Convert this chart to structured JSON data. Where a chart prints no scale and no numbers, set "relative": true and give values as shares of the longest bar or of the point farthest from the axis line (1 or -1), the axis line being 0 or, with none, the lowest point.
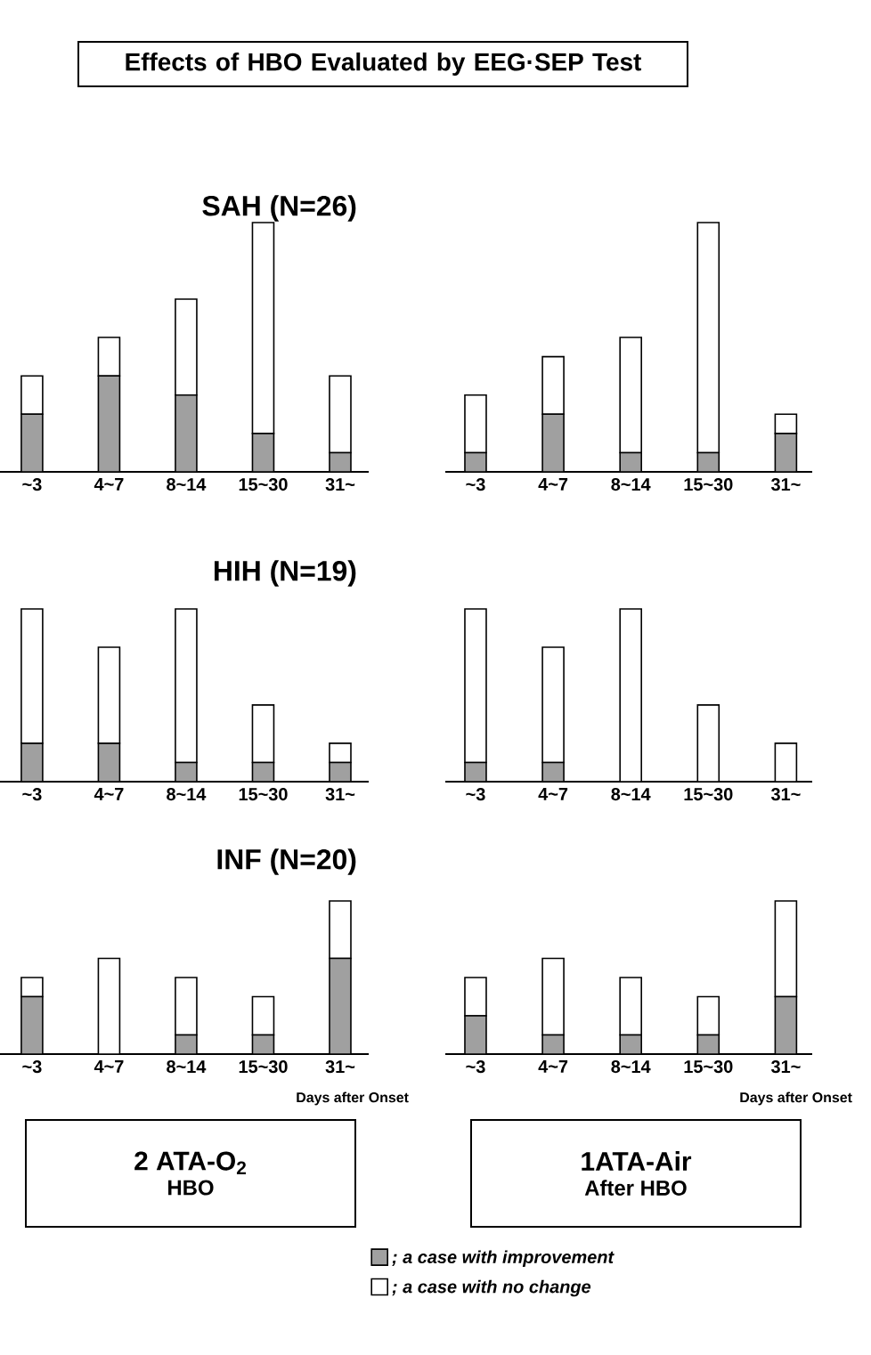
{
  "chart_data": [
    {
      "type": "bar",
      "title": "Effects of HBO Evaluated by EEG·SEP Test",
      "subtitle": "SAH (N=26)",
      "stacked": true,
      "relative": true,
      "categories": [
        "~3",
        "4~7",
        "8~14",
        "15~30",
        "31~"
      ],
      "series": [
        {
          "color": "#a0a0a0",
          "values": [
            0.231,
            0.385,
            0.308,
            0.154,
            0.077
          ]
        },
        {
          "color": "#ffffff",
          "values": [
            0.154,
            0.154,
            0.385,
            0.846,
            0.308
          ]
        }
      ]
    },
    {
      "type": "bar",
      "stacked": true,
      "relative": true,
      "categories": [
        "~3",
        "4~7",
        "8~14",
        "15~30",
        "31~"
      ],
      "series": [
        {
          "color": "#a0a0a0",
          "values": [
            0.077,
            0.231,
            0.077,
            0.077,
            0.154
          ]
        },
        {
          "color": "#ffffff",
          "values": [
            0.231,
            0.231,
            0.462,
            0.923,
            0.077
          ]
        }
      ]
    },
    {
      "type": "bar",
      "subtitle": "HIH (N=19)",
      "stacked": true,
      "relative": true,
      "categories": [
        "~3",
        "4~7",
        "8~14",
        "15~30",
        "31~"
      ],
      "series": [
        {
          "color": "#a0a0a0",
          "values": [
            0.222,
            0.222,
            0.111,
            0.111,
            0.111
          ]
        },
        {
          "color": "#ffffff",
          "values": [
            0.778,
            0.556,
            0.889,
            0.333,
            0.111
          ]
        }
      ]
    },
    {
      "type": "bar",
      "stacked": true,
      "relative": true,
      "categories": [
        "~3",
        "4~7",
        "8~14",
        "15~30",
        "31~"
      ],
      "series": [
        {
          "color": "#a0a0a0",
          "values": [
            0.111,
            0.111,
            0,
            0,
            0
          ]
        },
        {
          "color": "#ffffff",
          "values": [
            0.889,
            0.667,
            1,
            0.444,
            0.222
          ]
        }
      ]
    },
    {
      "type": "bar",
      "subtitle": "INF (N=20)",
      "stacked": true,
      "relative": true,
      "categories": [
        "~3",
        "4~7",
        "8~14",
        "15~30",
        "31~"
      ],
      "annotations": [
        "Days after Onset",
        "2 ATA-O$_{2}$",
        "HBO"
      ],
      "series": [
        {
          "color": "#a0a0a0",
          "values": [
            0.375,
            0,
            0.125,
            0.125,
            0.625
          ]
        },
        {
          "color": "#ffffff",
          "values": [
            0.125,
            0.625,
            0.375,
            0.25,
            0.375
          ]
        }
      ]
    },
    {
      "type": "bar",
      "stacked": true,
      "relative": true,
      "categories": [
        "~3",
        "4~7",
        "8~14",
        "15~30",
        "31~"
      ],
      "annotations": [
        "Days after Onset",
        "1ATA-Air",
        "After HBO"
      ],
      "legend": "bottom",
      "series": [
        {
          "name": "; a case with improvement",
          "color": "#a0a0a0",
          "values": [
            0.25,
            0.125,
            0.125,
            0.125,
            0.375
          ]
        },
        {
          "name": "; a case with no change",
          "color": "#ffffff",
          "values": [
            0.25,
            0.5,
            0.375,
            0.25,
            0.625
          ]
        }
      ]
    }
  ]
}
